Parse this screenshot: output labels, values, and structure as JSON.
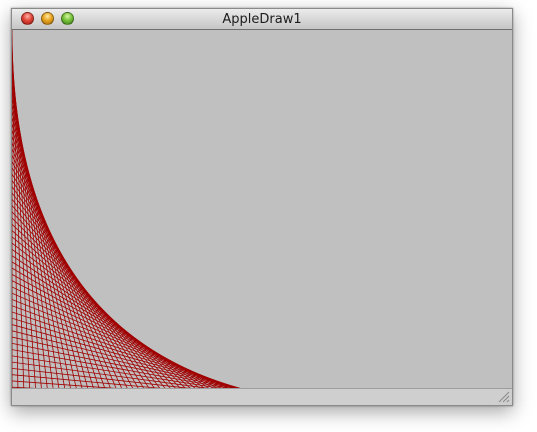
{
  "window": {
    "title": "AppleDraw1"
  },
  "titlebar": {
    "buttons": [
      {
        "name": "close",
        "color": "#e0483c"
      },
      {
        "name": "minimize",
        "color": "#e7a521"
      },
      {
        "name": "zoom",
        "color": "#78c23c"
      }
    ]
  },
  "canvas": {
    "background": "#c0c0c0",
    "line_color": "#a00000"
  },
  "icons": {
    "resize": "resize-grip-icon"
  }
}
